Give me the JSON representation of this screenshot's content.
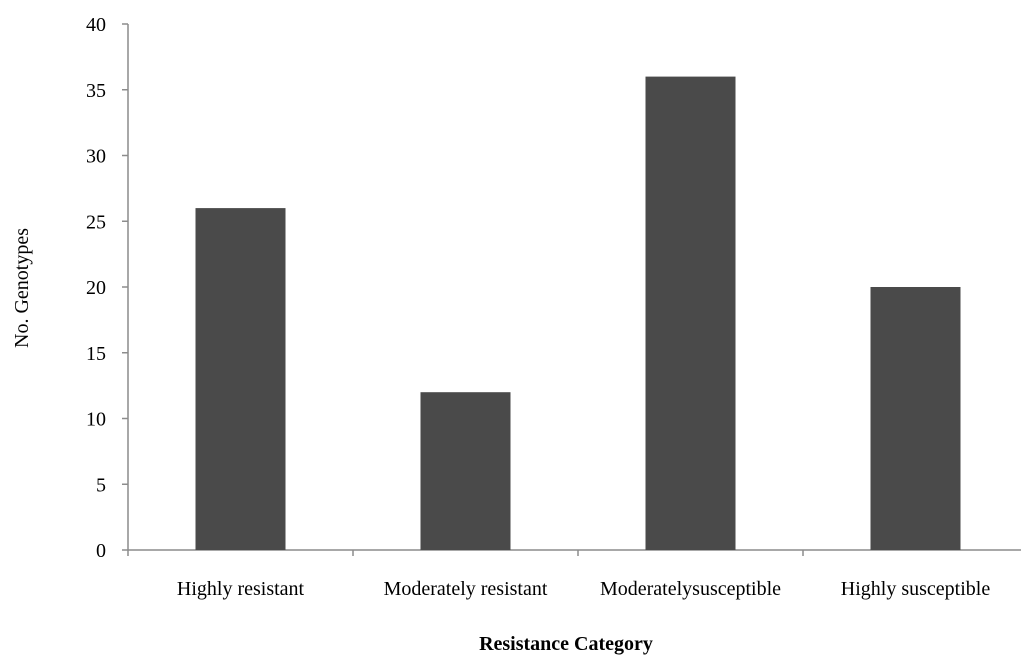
{
  "chart_data": {
    "type": "bar",
    "title": "",
    "xlabel": "Resistance Category",
    "ylabel": "No. Genotypes",
    "categories": [
      "Highly resistant",
      "Moderately resistant",
      "Moderatelysusceptible",
      "Highly susceptible"
    ],
    "values": [
      26,
      12,
      36,
      20
    ],
    "ylim": [
      0,
      40
    ],
    "yticks": [
      "0",
      "5",
      "10",
      "15",
      "20",
      "25",
      "30",
      "35",
      "40"
    ],
    "grid": false,
    "legend": "none",
    "bar_color": "#4a4a4a"
  }
}
